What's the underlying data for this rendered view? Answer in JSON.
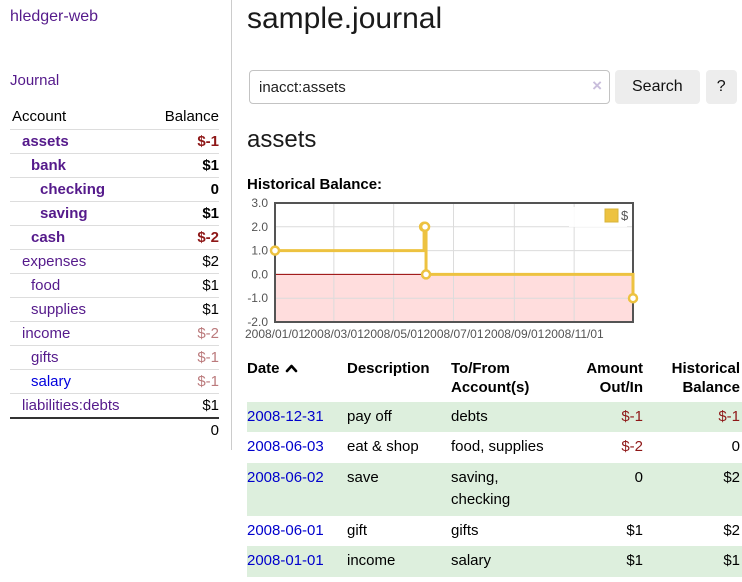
{
  "app": {
    "brand": "hledger-web"
  },
  "colors": {
    "link_visited": "#551a8b",
    "link_unvisited": "#0000dd",
    "negative": "#8e1717",
    "negative_faded": "#bb7a7c",
    "row_stripe_green": "#ddefdd",
    "series_gold": "#edc240",
    "chart_negative_region": "#ffdddd",
    "chart_zero_line": "#990000",
    "chart_border": "#545454"
  },
  "sidebar": {
    "nav": {
      "journal_label": "Journal"
    },
    "table": {
      "headers": [
        "Account",
        "Balance"
      ],
      "rows": [
        {
          "name": "assets",
          "balance": "$-1",
          "level": 1,
          "bold": true,
          "negative": true,
          "unvisited": false
        },
        {
          "name": "bank",
          "balance": "$1",
          "level": 2,
          "bold": true,
          "negative": false,
          "unvisited": false
        },
        {
          "name": "checking",
          "balance": "0",
          "level": 3,
          "bold": true,
          "negative": false,
          "unvisited": false
        },
        {
          "name": "saving",
          "balance": "$1",
          "level": 3,
          "bold": true,
          "negative": false,
          "unvisited": false
        },
        {
          "name": "cash",
          "balance": "$-2",
          "level": 2,
          "bold": true,
          "negative": true,
          "unvisited": false
        },
        {
          "name": "expenses",
          "balance": "$2",
          "level": 1,
          "bold": false,
          "negative": false,
          "unvisited": false
        },
        {
          "name": "food",
          "balance": "$1",
          "level": 2,
          "bold": false,
          "negative": false,
          "unvisited": false
        },
        {
          "name": "supplies",
          "balance": "$1",
          "level": 2,
          "bold": false,
          "negative": false,
          "unvisited": false
        },
        {
          "name": "income",
          "balance": "$-2",
          "level": 1,
          "bold": false,
          "negative": true,
          "unvisited": false
        },
        {
          "name": "gifts",
          "balance": "$-1",
          "level": 2,
          "bold": false,
          "negative": true,
          "unvisited": false
        },
        {
          "name": "salary",
          "balance": "$-1",
          "level": 2,
          "bold": false,
          "negative": true,
          "unvisited": true
        },
        {
          "name": "liabilities:debts",
          "balance": "$1",
          "level": 1,
          "bold": false,
          "negative": false,
          "unvisited": false
        }
      ],
      "total": "0"
    }
  },
  "main": {
    "title": "sample.journal",
    "search": {
      "value": "inacct:assets",
      "clear_icon": "×",
      "button_label": "Search",
      "help_label": "?"
    },
    "account_heading": "assets",
    "chart_label": "Historical Balance:"
  },
  "chart_data": {
    "type": "line",
    "step": true,
    "title": "Historical Balance",
    "xlim": [
      "2008-01-01",
      "2008-12-31"
    ],
    "ylim": [
      -2,
      3
    ],
    "x_ticks": [
      "2008/01/01",
      "2008/03/01",
      "2008/05/01",
      "2008/07/01",
      "2008/09/01",
      "2008/11/01"
    ],
    "y_ticks": [
      3.0,
      2.0,
      1.0,
      0.0,
      -1.0,
      -2.0
    ],
    "grid": true,
    "legend": {
      "label": "$",
      "position": "top-right"
    },
    "negative_region_color": "#ffdddd",
    "zero_line_color": "#990000",
    "series": [
      {
        "name": "$",
        "color": "#edc240",
        "points": [
          [
            "2008-01-01",
            1
          ],
          [
            "2008-06-01",
            2
          ],
          [
            "2008-06-02",
            2
          ],
          [
            "2008-06-03",
            0
          ],
          [
            "2008-12-31",
            -1
          ]
        ]
      }
    ]
  },
  "register": {
    "headers": [
      "Date",
      "Description",
      "To/From Account(s)",
      "Amount Out/In",
      "Historical Balance"
    ],
    "sort_icon": "chevron-up",
    "rows": [
      {
        "date": "2008-12-31",
        "description": "pay off",
        "tofrom": "debts",
        "amount": "$-1",
        "balance": "$-1"
      },
      {
        "date": "2008-06-03",
        "description": "eat & shop",
        "tofrom": "food, supplies",
        "amount": "$-2",
        "balance": "0"
      },
      {
        "date": "2008-06-02",
        "description": "save",
        "tofrom": "saving, checking",
        "amount": "0",
        "balance": "$2"
      },
      {
        "date": "2008-06-01",
        "description": "gift",
        "tofrom": "gifts",
        "amount": "$1",
        "balance": "$2"
      },
      {
        "date": "2008-01-01",
        "description": "income",
        "tofrom": "salary",
        "amount": "$1",
        "balance": "$1"
      }
    ]
  }
}
